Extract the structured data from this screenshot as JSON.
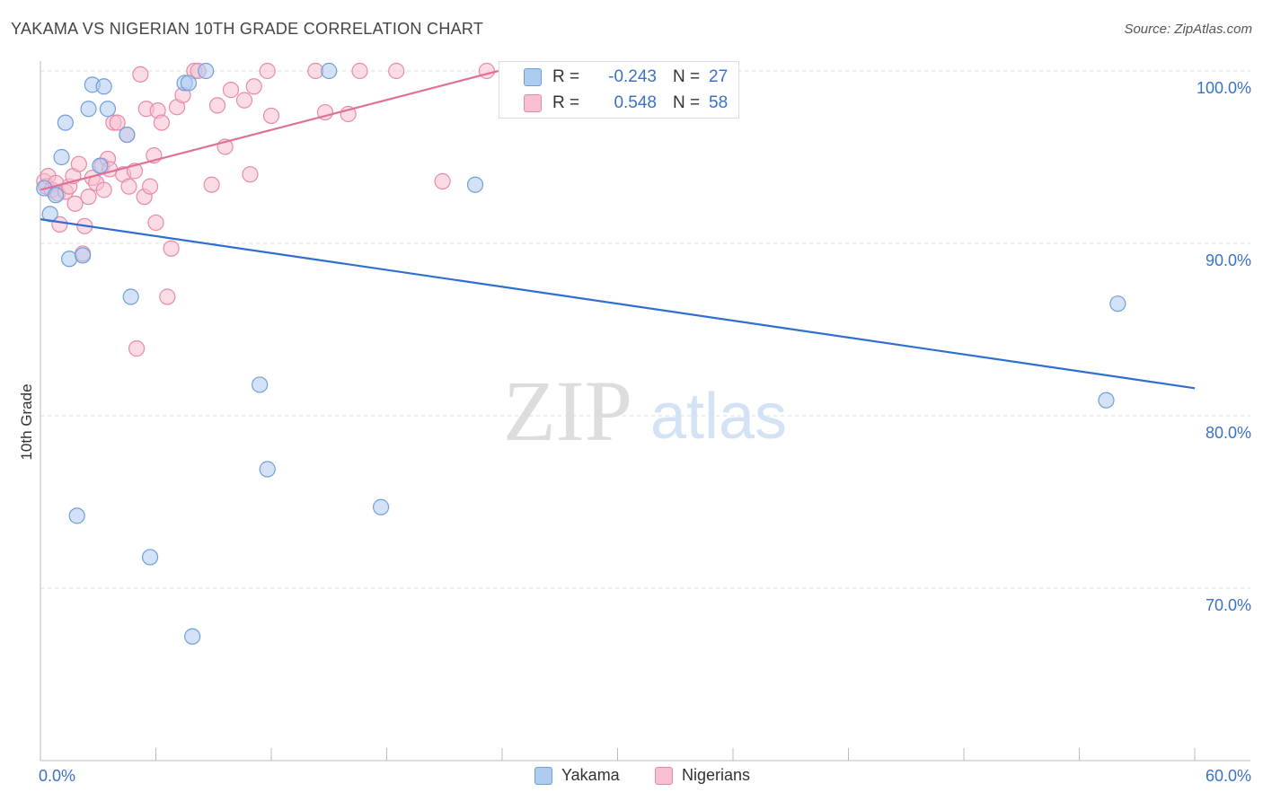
{
  "title": "YAKAMA VS NIGERIAN 10TH GRADE CORRELATION CHART",
  "source": "Source: ZipAtlas.com",
  "watermark": {
    "zip": "ZIP",
    "atlas": "atlas"
  },
  "stats": {
    "yakama": {
      "r_label": "R =",
      "r_value": "-0.243",
      "n_label": "N =",
      "n_value": "27"
    },
    "nigerians": {
      "r_label": "R =",
      "r_value": "0.548",
      "n_label": "N =",
      "n_value": "58"
    }
  },
  "legend": {
    "yakama": "Yakama",
    "nigerians": "Nigerians"
  },
  "colors": {
    "yakama_fill": "#aecbf0",
    "yakama_stroke": "#6f9fd8",
    "yakama_line": "#2f6fd0",
    "nigerians_fill": "#f7bfd0",
    "nigerians_stroke": "#e78aa8",
    "nigerians_line": "#e07098",
    "tick_label": "#3a72c8",
    "grid": "#dddddd"
  },
  "chart_data": {
    "type": "scatter",
    "title": "YAKAMA VS NIGERIAN 10TH GRADE CORRELATION CHART",
    "xlabel": "",
    "ylabel": "10th Grade",
    "xlim": [
      0,
      60
    ],
    "ylim": [
      60.5,
      101.5
    ],
    "x_tick_labels": [
      {
        "value": 0,
        "label": "0.0%"
      },
      {
        "value": 60,
        "label": "60.0%"
      }
    ],
    "y_ticks": [
      {
        "value": 100,
        "label": "100.0%"
      },
      {
        "value": 90,
        "label": "90.0%"
      },
      {
        "value": 80,
        "label": "80.0%"
      },
      {
        "value": 70,
        "label": "70.0%"
      }
    ],
    "series": [
      {
        "name": "Yakama",
        "points": [
          [
            0.2,
            93.2
          ],
          [
            0.5,
            91.7
          ],
          [
            0.8,
            92.8
          ],
          [
            1.1,
            95.0
          ],
          [
            1.3,
            97.0
          ],
          [
            1.5,
            89.1
          ],
          [
            1.9,
            74.2
          ],
          [
            2.2,
            89.3
          ],
          [
            2.5,
            97.8
          ],
          [
            2.7,
            99.2
          ],
          [
            3.1,
            94.5
          ],
          [
            3.3,
            99.1
          ],
          [
            3.5,
            97.8
          ],
          [
            4.5,
            96.3
          ],
          [
            4.7,
            86.9
          ],
          [
            5.7,
            71.8
          ],
          [
            7.5,
            99.3
          ],
          [
            7.7,
            99.3
          ],
          [
            7.9,
            67.2
          ],
          [
            8.6,
            100.0
          ],
          [
            11.4,
            81.8
          ],
          [
            11.8,
            76.9
          ],
          [
            15.0,
            100.0
          ],
          [
            17.7,
            74.7
          ],
          [
            22.6,
            93.4
          ],
          [
            56.0,
            86.5
          ],
          [
            55.4,
            80.9
          ]
        ],
        "trend": {
          "x": [
            0,
            60
          ],
          "y": [
            91.4,
            81.6
          ]
        }
      },
      {
        "name": "Nigerians",
        "points": [
          [
            0.2,
            93.6
          ],
          [
            0.3,
            93.3
          ],
          [
            0.4,
            93.9
          ],
          [
            0.6,
            93.1
          ],
          [
            0.8,
            93.5
          ],
          [
            0.9,
            92.9
          ],
          [
            1.0,
            91.1
          ],
          [
            1.3,
            93.0
          ],
          [
            1.5,
            93.3
          ],
          [
            1.7,
            93.9
          ],
          [
            1.8,
            92.3
          ],
          [
            2.0,
            94.6
          ],
          [
            2.2,
            89.4
          ],
          [
            2.3,
            91.0
          ],
          [
            2.5,
            92.7
          ],
          [
            2.7,
            93.8
          ],
          [
            2.9,
            93.5
          ],
          [
            3.2,
            94.5
          ],
          [
            3.3,
            93.1
          ],
          [
            3.5,
            94.9
          ],
          [
            3.6,
            94.3
          ],
          [
            3.8,
            97.0
          ],
          [
            4.0,
            97.0
          ],
          [
            4.3,
            94.0
          ],
          [
            4.5,
            96.3
          ],
          [
            4.6,
            93.3
          ],
          [
            4.9,
            94.2
          ],
          [
            5.0,
            83.9
          ],
          [
            5.2,
            99.8
          ],
          [
            5.4,
            92.7
          ],
          [
            5.5,
            97.8
          ],
          [
            5.7,
            93.3
          ],
          [
            5.9,
            95.1
          ],
          [
            6.0,
            91.2
          ],
          [
            6.1,
            97.7
          ],
          [
            6.3,
            97.0
          ],
          [
            6.6,
            86.9
          ],
          [
            6.8,
            89.7
          ],
          [
            7.1,
            97.9
          ],
          [
            7.4,
            98.6
          ],
          [
            8.0,
            100.0
          ],
          [
            8.2,
            100.0
          ],
          [
            8.9,
            93.4
          ],
          [
            9.2,
            98.0
          ],
          [
            9.6,
            95.6
          ],
          [
            9.9,
            98.9
          ],
          [
            10.6,
            98.3
          ],
          [
            10.9,
            94.0
          ],
          [
            11.1,
            99.1
          ],
          [
            11.8,
            100.0
          ],
          [
            12.0,
            97.4
          ],
          [
            14.3,
            100.0
          ],
          [
            14.8,
            97.6
          ],
          [
            16.0,
            97.5
          ],
          [
            16.6,
            100.0
          ],
          [
            18.5,
            100.0
          ],
          [
            20.9,
            93.6
          ],
          [
            23.2,
            100.0
          ]
        ],
        "trend": {
          "x": [
            0,
            23.8
          ],
          "y": [
            93.1,
            100.0
          ]
        }
      }
    ],
    "legend_position": "bottom-center",
    "grid": true
  }
}
